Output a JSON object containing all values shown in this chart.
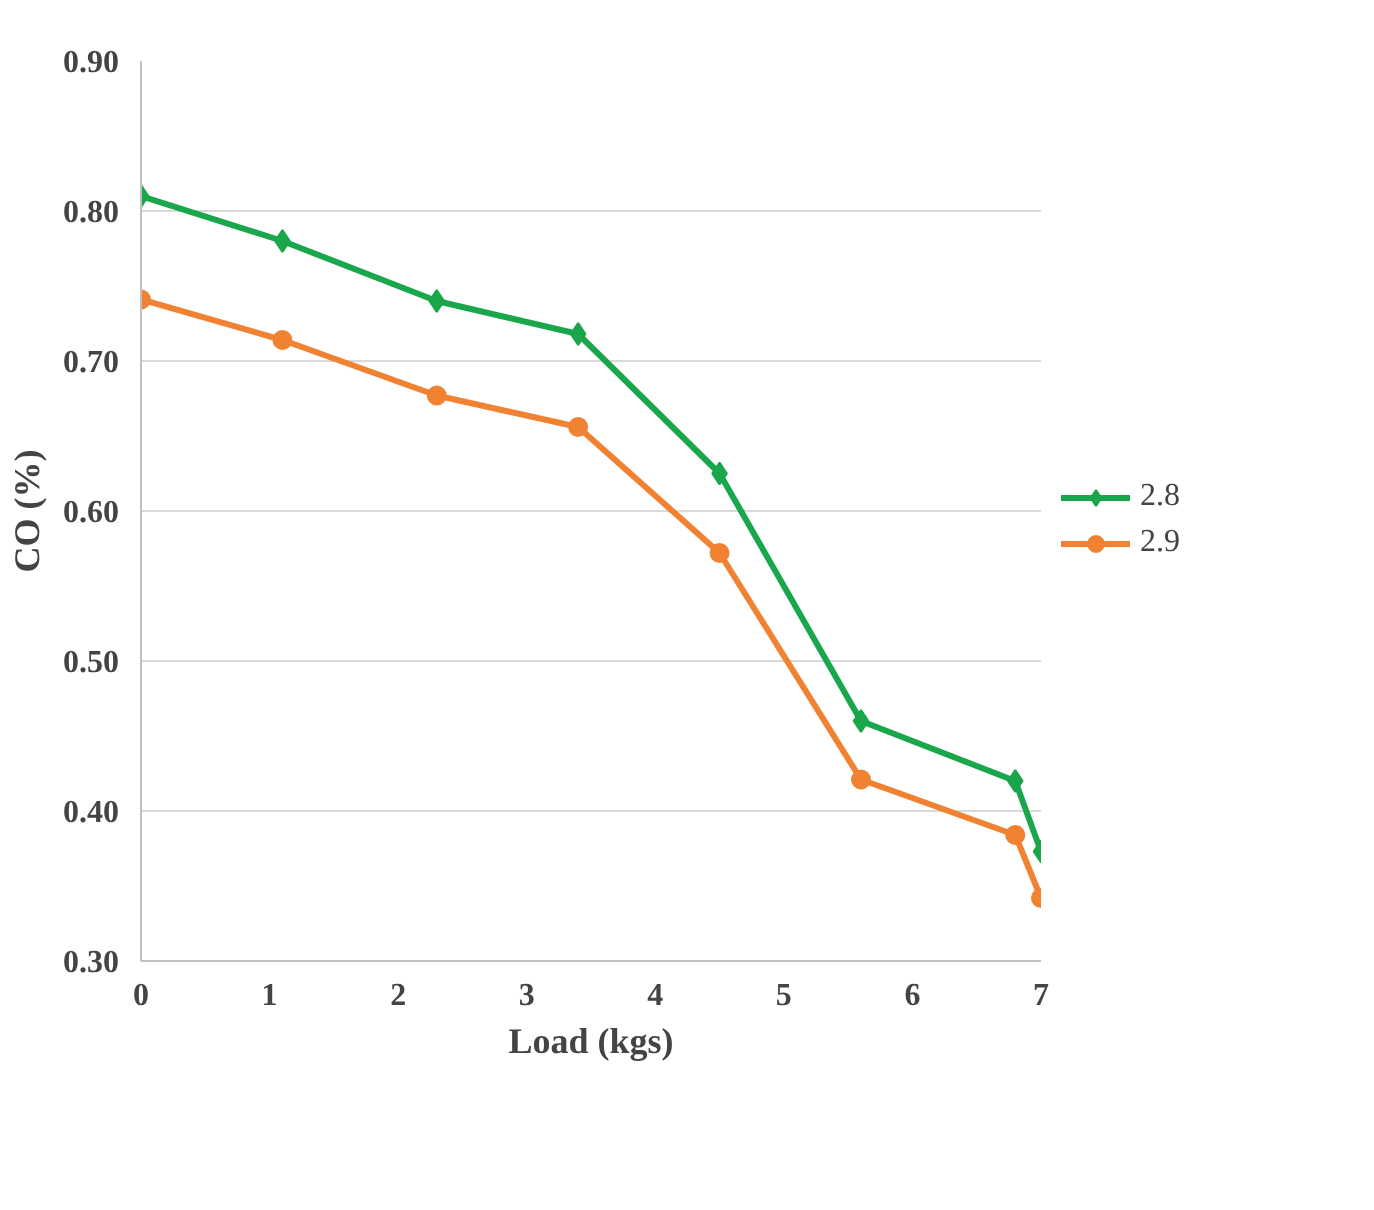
{
  "chart_data": {
    "type": "line",
    "xlabel": "Load (kgs)",
    "ylabel": "CO (%)",
    "x": [
      0,
      1.1,
      2.3,
      3.4,
      4.5,
      5.6,
      6.8,
      7.0
    ],
    "series": [
      {
        "name": "2.8",
        "color": "#1aa64a",
        "marker": "diamond",
        "values": [
          0.81,
          0.78,
          0.74,
          0.718,
          0.625,
          0.46,
          0.42,
          0.373
        ]
      },
      {
        "name": "2.9",
        "color": "#f08232",
        "marker": "circle",
        "values": [
          0.741,
          0.714,
          0.677,
          0.656,
          0.572,
          0.421,
          0.384,
          0.342
        ]
      }
    ],
    "xlim": [
      0,
      7
    ],
    "xticks": [
      0,
      1,
      2,
      3,
      4,
      5,
      6,
      7
    ],
    "ylim": [
      0.3,
      0.9
    ],
    "yticks": [
      {
        "value": 0.3,
        "label": "0.30"
      },
      {
        "value": 0.4,
        "label": "0.40"
      },
      {
        "value": 0.5,
        "label": "0.50"
      },
      {
        "value": 0.6,
        "label": "0.60"
      },
      {
        "value": 0.7,
        "label": "0.70"
      },
      {
        "value": 0.8,
        "label": "0.80"
      },
      {
        "value": 0.9,
        "label": "0.90"
      }
    ],
    "grid": "y",
    "legend": "right"
  }
}
